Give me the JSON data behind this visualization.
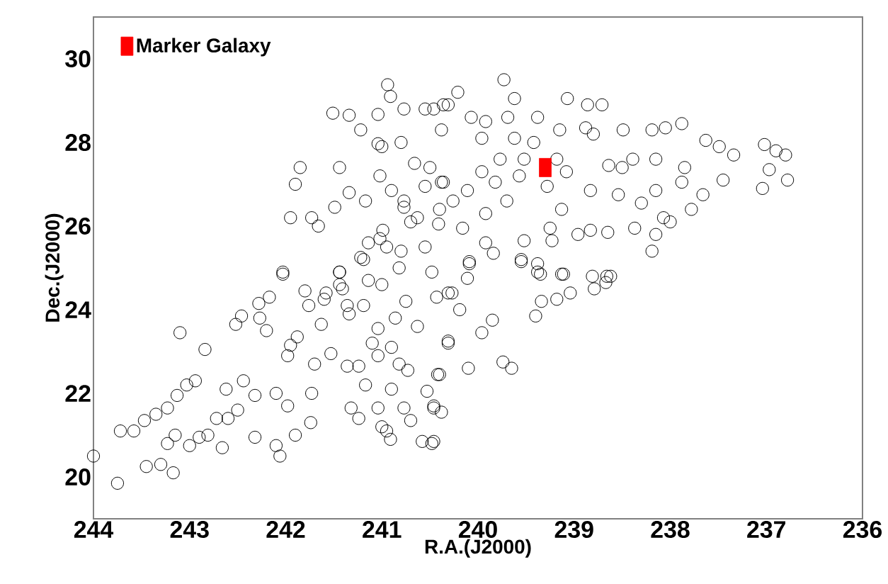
{
  "chart_data": {
    "type": "scatter",
    "xlabel": "R.A.(J2000)",
    "ylabel": "Dec.(J2000)",
    "xlim": [
      244,
      236
    ],
    "ylim": [
      19,
      31
    ],
    "xticks": [
      244,
      243,
      242,
      241,
      240,
      239,
      238,
      237,
      236
    ],
    "yticks": [
      20,
      22,
      24,
      26,
      28,
      30
    ],
    "legend": "top left",
    "series": [
      {
        "color": "#000000",
        "marker": "circle",
        "x": [
          244.0,
          243.75,
          243.72,
          243.58,
          243.47,
          243.35,
          243.23,
          243.13,
          243.03,
          242.94,
          243.1,
          242.84,
          243.45,
          243.3,
          243.17,
          243.23,
          243.15,
          243.0,
          242.9,
          242.81,
          242.66,
          242.72,
          242.6,
          242.62,
          242.5,
          242.44,
          242.32,
          242.32,
          242.52,
          242.46,
          242.28,
          242.17,
          242.27,
          242.2,
          242.1,
          242.1,
          242.06,
          242.03,
          241.98,
          241.95,
          241.98,
          241.9,
          241.88,
          241.8,
          241.76,
          241.73,
          241.74,
          241.7,
          241.63,
          241.6,
          241.53,
          241.44,
          241.41,
          241.36,
          241.34,
          241.32,
          241.24,
          241.24,
          241.19,
          241.17,
          241.14,
          241.1,
          241.04,
          241.04,
          241.04,
          241.0,
          241.0,
          240.95,
          240.91,
          240.9,
          240.9,
          240.86,
          240.82,
          240.82,
          240.77,
          240.75,
          240.73,
          240.7,
          240.63,
          240.58,
          240.46,
          240.48,
          240.46,
          240.4,
          240.31,
          240.31,
          240.43,
          240.27,
          240.19,
          240.11,
          240.09,
          240.31,
          240.42,
          240.53,
          240.46,
          240.38,
          240.48,
          240.1,
          239.96,
          239.85,
          239.74,
          239.65,
          239.55,
          239.38,
          239.35,
          239.4,
          239.34,
          239.18,
          239.13,
          239.04,
          238.81,
          238.79,
          238.67,
          238.62,
          240.94,
          240.91,
          241.51,
          241.34,
          241.22,
          241.04,
          241.0,
          240.8,
          240.77,
          241.04,
          240.55,
          240.36,
          240.38,
          240.66,
          241.85,
          241.9,
          241.44,
          241.34,
          241.17,
          241.02,
          240.9,
          240.77,
          241.95,
          241.73,
          241.66,
          241.49,
          242.03,
          241.44,
          241.19,
          241.02,
          240.95,
          240.8,
          240.63,
          240.55,
          240.38,
          240.4,
          239.73,
          240.21,
          239.62,
          239.07,
          238.86,
          238.71,
          240.46,
          240.31,
          240.07,
          239.92,
          239.96,
          239.69,
          239.38,
          239.62,
          239.42,
          239.15,
          238.88,
          238.8,
          238.49,
          238.19,
          238.05,
          237.88,
          237.63,
          237.49,
          237.34,
          237.02,
          236.9,
          236.8,
          236.78,
          237.04,
          236.97,
          237.45,
          237.66,
          237.88,
          237.85,
          238.15,
          238.39,
          238.5,
          238.64,
          238.83,
          238.54,
          238.3,
          238.15,
          238.07,
          238.0,
          237.78,
          238.37,
          238.15,
          238.19,
          238.83,
          238.96,
          238.65,
          239.25,
          239.23,
          239.13,
          239.52,
          239.55,
          239.38,
          239.11,
          238.66,
          239.84,
          240.09,
          239.92,
          240.5,
          240.36,
          240.26,
          240.11,
          239.96,
          239.82,
          239.77,
          239.57,
          239.52,
          239.18,
          239.08,
          239.28,
          239.7,
          239.92,
          240.41,
          240.16,
          241.14,
          241.22,
          240.99,
          240.77,
          240.55,
          240.7,
          241.44,
          241.36,
          241.58
        ],
        "values": [
          20.5,
          19.85,
          21.1,
          21.1,
          21.35,
          21.5,
          21.65,
          21.95,
          22.2,
          22.3,
          23.45,
          23.05,
          20.25,
          20.3,
          20.1,
          20.8,
          21.0,
          20.75,
          20.95,
          21.0,
          20.7,
          21.4,
          21.4,
          22.1,
          21.6,
          22.3,
          21.95,
          20.95,
          23.65,
          23.85,
          24.15,
          24.3,
          23.8,
          23.5,
          22.0,
          20.75,
          20.5,
          24.85,
          21.7,
          23.15,
          22.9,
          21.0,
          23.35,
          24.45,
          24.1,
          22.0,
          21.3,
          22.7,
          23.65,
          24.25,
          22.95,
          24.9,
          24.5,
          22.65,
          23.9,
          21.65,
          21.4,
          22.65,
          24.1,
          22.2,
          24.7,
          23.2,
          23.55,
          22.9,
          21.65,
          21.2,
          24.6,
          21.1,
          20.9,
          23.1,
          22.1,
          23.8,
          25.0,
          22.7,
          21.65,
          24.2,
          22.55,
          21.35,
          23.6,
          20.85,
          20.85,
          24.9,
          21.65,
          22.45,
          24.4,
          23.2,
          24.3,
          24.4,
          24.0,
          24.75,
          25.1,
          23.25,
          22.45,
          22.05,
          21.7,
          21.55,
          20.8,
          22.6,
          23.45,
          23.75,
          22.75,
          22.6,
          25.15,
          25.1,
          24.85,
          23.85,
          24.2,
          24.25,
          24.85,
          24.4,
          24.8,
          24.5,
          24.65,
          24.8,
          29.38,
          29.1,
          28.7,
          28.65,
          28.3,
          27.97,
          27.9,
          28.0,
          28.8,
          28.67,
          28.8,
          28.9,
          28.3,
          27.5,
          27.4,
          27.0,
          27.4,
          26.8,
          26.6,
          27.2,
          26.85,
          26.45,
          26.2,
          26.2,
          26.0,
          26.45,
          24.9,
          24.9,
          25.2,
          25.7,
          25.5,
          25.4,
          26.2,
          25.5,
          27.05,
          26.4,
          29.5,
          29.2,
          29.05,
          29.05,
          28.9,
          28.9,
          28.8,
          28.9,
          28.6,
          28.5,
          28.1,
          28.6,
          28.6,
          28.1,
          28.0,
          28.3,
          28.35,
          28.2,
          28.3,
          28.3,
          28.35,
          28.45,
          28.05,
          27.9,
          27.7,
          27.95,
          27.8,
          27.7,
          27.1,
          26.9,
          27.35,
          27.1,
          26.75,
          27.05,
          27.4,
          27.6,
          27.6,
          27.4,
          27.45,
          26.85,
          26.75,
          26.55,
          26.85,
          26.2,
          26.1,
          26.4,
          25.95,
          25.8,
          25.4,
          25.9,
          25.8,
          25.85,
          25.95,
          25.65,
          26.4,
          25.65,
          25.2,
          24.9,
          24.85,
          24.8,
          25.35,
          25.15,
          25.6,
          27.4,
          27.05,
          26.6,
          26.85,
          27.3,
          27.05,
          27.6,
          27.2,
          27.6,
          27.6,
          27.3,
          26.95,
          26.6,
          26.3,
          26.05,
          25.95,
          25.6,
          25.25,
          25.9,
          26.6,
          26.95,
          26.1,
          24.6,
          24.1,
          24.4
        ]
      },
      {
        "name": "Marker Galaxy",
        "color": "#ff0000",
        "marker": "square",
        "x": [
          239.3
        ],
        "values": [
          27.4
        ]
      }
    ]
  }
}
